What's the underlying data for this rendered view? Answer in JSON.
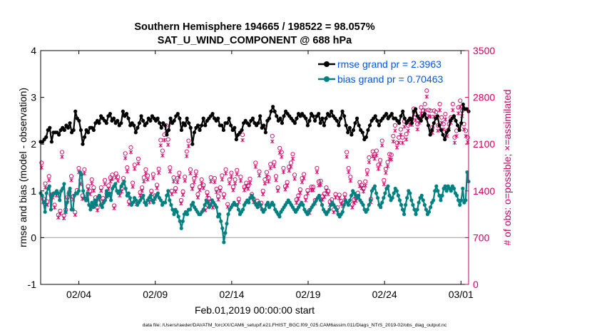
{
  "chart_data": {
    "type": "line",
    "title": "Southern Hemisphere 194665 / 198522 = 98.057%",
    "subtitle": "SAT_U_WIND_COMPONENT @ 688 hPa",
    "xlabel": "Feb.01,2019 00:00:00 start",
    "ylabel_left": "rmse and bias (model - observation)",
    "ylabel_right": "# of obs: o=possible; ×=assimilated",
    "footnote": "data file: /Users/raeder/DAI/ATM_forcXX/CAM6_setup/f.e21.FHIST_BGC.f09_025.CAM6assim.011/Diags_NTrS_2019-02/obs_diag_output.nc",
    "xlim": [
      0,
      28
    ],
    "ylim_left": [
      -1,
      4
    ],
    "ylim_right": [
      0,
      3500
    ],
    "x_ticks": [
      2.5,
      7.5,
      12.5,
      17.5,
      22.5,
      27.5
    ],
    "x_tick_labels": [
      "02/04",
      "02/09",
      "02/14",
      "02/19",
      "02/24",
      "03/01"
    ],
    "y_left_ticks": [
      -1,
      0,
      1,
      2,
      3,
      4
    ],
    "y_right_ticks": [
      0,
      700,
      1400,
      2100,
      2800,
      3500
    ],
    "legend": [
      {
        "label": "rmse grand pr = 2.3963",
        "color": "#000000"
      },
      {
        "label": "bias grand pr = 0.70463",
        "color": "#008080"
      }
    ],
    "colors": {
      "rmse": "#000000",
      "bias": "#008080",
      "obs": "#cc0066",
      "legend_text": "#0055ee",
      "zero_line": "#b0b0b0"
    },
    "series": [
      {
        "name": "rmse",
        "values": [
          2.05,
          2.05,
          2.1,
          2.15,
          2.3,
          2.35,
          2.05,
          2.25,
          2.25,
          2.25,
          2.2,
          2.3,
          2.35,
          2.3,
          2.4,
          2.35,
          2.45,
          2.25,
          2.3,
          2.7,
          2.55,
          2.5,
          2.3,
          2.0,
          2.15,
          2.3,
          2.25,
          2.35,
          2.35,
          2.3,
          2.45,
          2.5,
          2.45,
          2.6,
          2.55,
          2.5,
          2.45,
          2.6,
          2.65,
          2.5,
          2.55,
          2.45,
          2.5,
          2.4,
          2.45,
          2.7,
          2.6,
          2.65,
          2.55,
          2.4,
          2.45,
          2.4,
          2.25,
          2.35,
          2.45,
          2.6,
          2.5,
          2.4,
          2.45,
          2.55,
          2.5,
          2.6,
          2.55,
          2.5,
          2.55,
          2.45,
          2.35,
          2.45,
          2.4,
          2.2,
          2.3,
          2.55,
          2.45,
          2.5,
          2.6,
          2.65,
          2.55,
          2.3,
          2.45,
          2.4,
          2.55,
          2.45,
          2.35,
          2.0,
          2.25,
          2.35,
          2.4,
          2.3,
          2.4,
          2.55,
          2.4,
          2.5,
          2.55,
          2.6,
          2.65,
          2.55,
          2.5,
          2.55,
          2.4,
          2.4,
          2.3,
          2.45,
          2.45,
          2.55,
          2.4,
          2.3,
          2.35,
          2.1,
          2.2,
          2.25,
          2.3,
          2.45,
          2.5,
          2.45,
          2.4,
          2.5,
          2.55,
          2.45,
          2.4,
          2.45,
          2.6,
          2.35,
          2.4,
          2.25,
          2.5,
          2.55,
          2.7,
          2.8,
          2.7,
          2.6,
          2.5,
          2.55,
          2.45,
          2.6,
          2.7,
          2.65,
          2.6,
          2.55,
          2.5,
          2.45,
          2.55,
          2.65,
          2.6,
          2.65,
          2.6,
          2.55,
          2.4,
          2.5,
          2.65,
          2.6,
          2.5,
          2.6,
          2.65,
          2.45,
          2.55,
          2.4,
          2.55,
          2.65,
          2.6,
          2.7,
          2.6,
          2.55,
          2.5,
          2.4,
          2.55,
          2.7,
          2.6,
          2.4,
          2.25,
          2.35,
          2.2,
          2.3,
          2.45,
          2.55,
          2.4,
          2.3,
          2.25,
          2.1,
          2.15,
          2.3,
          2.4,
          2.5,
          2.55,
          2.6,
          2.5,
          2.4,
          2.5,
          2.55,
          2.6,
          2.65,
          2.55,
          2.6,
          2.65,
          2.55,
          2.55,
          2.5,
          2.45,
          2.6,
          2.7,
          2.55,
          2.45,
          2.5,
          2.55,
          2.45,
          2.7,
          2.75,
          2.6,
          2.55,
          2.5,
          2.6,
          2.65,
          2.55,
          2.4,
          2.2,
          2.3,
          2.45,
          2.55,
          2.6,
          2.4,
          2.3,
          2.2,
          2.1,
          2.25,
          2.3,
          2.5,
          2.55,
          2.6,
          2.5,
          2.4,
          2.3,
          2.45,
          2.85,
          2.75,
          2.75,
          2.7
        ]
      },
      {
        "name": "bias",
        "values": [
          0.95,
          0.9,
          0.75,
          0.55,
          0.95,
          1.05,
          1.1,
          0.6,
          0.9,
          0.95,
          0.95,
          1.0,
          0.95,
          0.8,
          1.0,
          1.05,
          1.15,
          0.55,
          0.75,
          0.95,
          1.05,
          0.6,
          0.6,
          0.9,
          0.95,
          0.95,
          1.0,
          1.4,
          1.35,
          1.0,
          0.85,
          0.8,
          0.95,
          0.7,
          0.6,
          0.75,
          0.65,
          0.8,
          0.7,
          0.85,
          0.9,
          0.7,
          0.65,
          0.75,
          0.8,
          1.0,
          0.9,
          0.95,
          0.8,
          1.05,
          1.1,
          1.15,
          1.0,
          0.95,
          1.0,
          1.1,
          1.15,
          1.2,
          1.05,
          0.9,
          0.95,
          0.85,
          0.7,
          0.75,
          0.85,
          0.8,
          0.7,
          0.75,
          0.8,
          0.85,
          0.9,
          0.75,
          0.7,
          0.8,
          0.85,
          0.9,
          0.8,
          0.75,
          0.85,
          0.9,
          0.95,
          0.85,
          0.8,
          0.7,
          0.75,
          0.75,
          0.9,
          1.0,
          0.8,
          0.7,
          0.6,
          0.5,
          0.6,
          0.55,
          0.45,
          0.35,
          0.2,
          0.35,
          0.5,
          0.55,
          0.5,
          0.6,
          0.6,
          0.7,
          0.75,
          0.65,
          0.6,
          0.55,
          0.5,
          0.5,
          0.55,
          0.6,
          0.7,
          0.8,
          0.75,
          0.65,
          0.7,
          0.8,
          0.75,
          0.7,
          0.65,
          0.45,
          0.5,
          0.35,
          0.2,
          -0.1,
          0.1,
          0.3,
          0.5,
          0.6,
          0.65,
          0.7,
          0.75,
          0.7,
          0.7,
          0.6,
          0.5,
          0.55,
          0.6,
          0.7,
          0.75,
          0.8,
          0.75,
          0.85,
          0.9,
          0.85,
          0.75,
          0.7,
          0.65,
          0.75,
          0.7,
          0.6,
          0.55,
          0.6,
          0.7,
          0.75,
          0.65,
          0.7,
          0.75,
          0.7,
          0.6,
          0.55,
          0.5,
          0.45,
          0.55,
          0.6,
          0.65,
          0.7,
          0.75,
          0.8,
          0.75,
          0.7,
          0.65,
          0.6,
          0.55,
          0.6,
          0.65,
          0.7,
          0.75,
          0.7,
          0.6,
          0.55,
          0.5,
          0.55,
          0.6,
          0.65,
          0.7,
          0.75,
          0.8,
          0.85,
          0.9,
          0.8,
          0.7,
          0.6,
          0.55,
          0.5,
          0.55,
          0.6,
          0.7,
          0.75,
          0.7,
          0.65,
          0.6,
          0.5,
          0.45,
          0.5,
          0.55,
          0.7,
          0.8,
          0.75,
          0.7,
          0.8,
          0.9,
          1.0,
          0.95,
          0.9,
          0.85,
          0.9,
          0.8,
          0.75,
          0.7,
          0.6,
          0.55,
          0.6,
          0.7,
          0.8,
          1.0,
          1.05,
          1.1,
          0.95,
          0.85,
          0.7,
          0.65,
          0.75,
          0.85,
          0.95,
          1.05,
          1.1,
          0.9,
          0.8,
          0.85,
          0.95,
          1.05,
          1.0,
          0.9,
          0.8,
          0.7,
          0.6,
          0.5,
          0.7,
          0.85,
          1.0,
          0.95,
          0.8,
          0.7,
          0.6,
          0.5,
          0.6,
          0.75,
          0.85,
          0.9,
          0.8,
          0.7,
          0.6,
          0.5,
          0.55,
          0.65,
          0.75,
          0.8,
          1.0,
          1.1,
          1.0,
          0.9,
          0.8,
          0.9,
          1.05,
          1.1,
          1.0,
          1.1,
          1.05,
          1.0,
          1.1,
          1.05,
          0.95,
          0.9,
          0.8,
          0.7,
          0.8,
          1.05,
          0.75,
          0.8,
          1.4,
          1.2
        ]
      },
      {
        "name": "obs_possible",
        "values": [
          1820,
          1280,
          1510,
          1240,
          1620,
          1340,
          1350,
          1190,
          1380,
          1040,
          1100,
          1980,
          1030,
          1120,
          1310,
          1390,
          1620,
          1320,
          1080,
          1410,
          1740,
          1560,
          1330,
          1720,
          1310,
          1470,
          1400,
          1570,
          1450,
          1300,
          1150,
          1320,
          1450,
          1290,
          1560,
          1360,
          1480,
          1600,
          1640,
          1180,
          1660,
          1610,
          1380,
          1440,
          1590,
          1960,
          1750,
          1240,
          2050,
          1520,
          1790,
          1240,
          1880,
          1380,
          1450,
          1600,
          1720,
          1630,
          1280,
          1400,
          1650,
          1330,
          1490,
          1730,
          2160,
          2000,
          2240,
          2380,
          2170,
          1750,
          1400,
          1600,
          1440,
          1590,
          1670,
          1260,
          1390,
          1610,
          1990,
          2150,
          1720,
          1480,
          1590,
          1690,
          1350,
          1460,
          1570,
          1490,
          1150,
          1380,
          1290,
          1600,
          1190,
          1590,
          1430,
          1320,
          1450,
          1630,
          1350,
          1720,
          1200,
          1570,
          1670,
          1460,
          1570,
          1710,
          1280,
          1610,
          2240,
          1460,
          1520,
          1480,
          1580,
          1350,
          1280,
          1820,
          1250,
          1690,
          1220,
          1400,
          1570,
          1680,
          1600,
          1800,
          2220,
          1830,
          1620,
          1450,
          2040,
          1980,
          1740,
          1470,
          1530,
          1760,
          1820,
          1950,
          1640,
          1270,
          1330,
          1420,
          1590,
          1650,
          1310,
          1410,
          1110,
          1460,
          1460,
          1260,
          1740,
          1540,
          1550,
          1320,
          1360,
          1450,
          1400,
          1240,
          1270,
          1120,
          1350,
          1150,
          1340,
          1250,
          1220,
          1350,
          1980,
          1740,
          1610,
          1200,
          1270,
          1300,
          1370,
          1530,
          1490,
          1440,
          1540,
          1710,
          1900,
          1280,
          1990,
          1950,
          2000,
          1790,
          1860,
          2150,
          1560,
          1730,
          1830,
          1950,
          1940,
          2220,
          2380,
          2120,
          2200,
          2320,
          2200,
          2440,
          2250,
          2380,
          2480,
          2470,
          2630,
          2550,
          2400,
          2500,
          2650,
          2600,
          2700,
          2900,
          2610,
          2600,
          2350,
          2600,
          2580,
          2380,
          2700,
          2500,
          2400,
          2550,
          2300,
          2400,
          2500,
          2700,
          2200,
          2300,
          2650,
          2750,
          2600,
          2400,
          2300,
          2200
        ]
      },
      {
        "name": "obs_assimilated",
        "values": [
          1750,
          1230,
          1450,
          1190,
          1560,
          1290,
          1300,
          1150,
          1330,
          1000,
          1060,
          1910,
          990,
          1080,
          1260,
          1340,
          1560,
          1270,
          1040,
          1360,
          1680,
          1500,
          1280,
          1660,
          1260,
          1420,
          1350,
          1510,
          1400,
          1250,
          1110,
          1270,
          1400,
          1240,
          1500,
          1310,
          1430,
          1540,
          1580,
          1140,
          1600,
          1550,
          1330,
          1390,
          1530,
          1890,
          1690,
          1200,
          1980,
          1460,
          1730,
          1200,
          1810,
          1330,
          1400,
          1540,
          1660,
          1570,
          1230,
          1350,
          1590,
          1280,
          1440,
          1670,
          2080,
          1930,
          2160,
          2300,
          2090,
          1690,
          1350,
          1540,
          1390,
          1530,
          1610,
          1210,
          1340,
          1550,
          1920,
          2070,
          1660,
          1430,
          1530,
          1630,
          1300,
          1410,
          1510,
          1440,
          1110,
          1330,
          1240,
          1540,
          1150,
          1530,
          1380,
          1270,
          1400,
          1570,
          1300,
          1660,
          1160,
          1510,
          1610,
          1410,
          1510,
          1650,
          1230,
          1550,
          2160,
          1410,
          1470,
          1430,
          1520,
          1300,
          1230,
          1760,
          1200,
          1630,
          1170,
          1350,
          1510,
          1620,
          1540,
          1740,
          2140,
          1770,
          1560,
          1400,
          1970,
          1910,
          1680,
          1420,
          1480,
          1700,
          1760,
          1880,
          1580,
          1220,
          1280,
          1370,
          1530,
          1590,
          1260,
          1360,
          1070,
          1410,
          1410,
          1210,
          1680,
          1480,
          1490,
          1270,
          1310,
          1400,
          1350,
          1190,
          1220,
          1080,
          1300,
          1110,
          1290,
          1200,
          1170,
          1300,
          1910,
          1680,
          1550,
          1150,
          1220,
          1250,
          1320,
          1470,
          1440,
          1390,
          1480,
          1650,
          1830,
          1230,
          1920,
          1880,
          1930,
          1730,
          1800,
          2080,
          1500,
          1670,
          1770,
          1880,
          1870,
          2140,
          2300,
          2050,
          2120,
          2240,
          2120,
          2360,
          2170,
          2300,
          2400,
          2390,
          2540,
          2460,
          2320,
          2420,
          2560,
          2520,
          2610,
          2810,
          2520,
          2510,
          2270,
          2510,
          2490,
          2300,
          2610,
          2420,
          2320,
          2470,
          2220,
          2320,
          2420,
          2610,
          2120,
          2220,
          2560,
          2660,
          2520,
          2320,
          2220,
          2130
        ]
      }
    ]
  }
}
